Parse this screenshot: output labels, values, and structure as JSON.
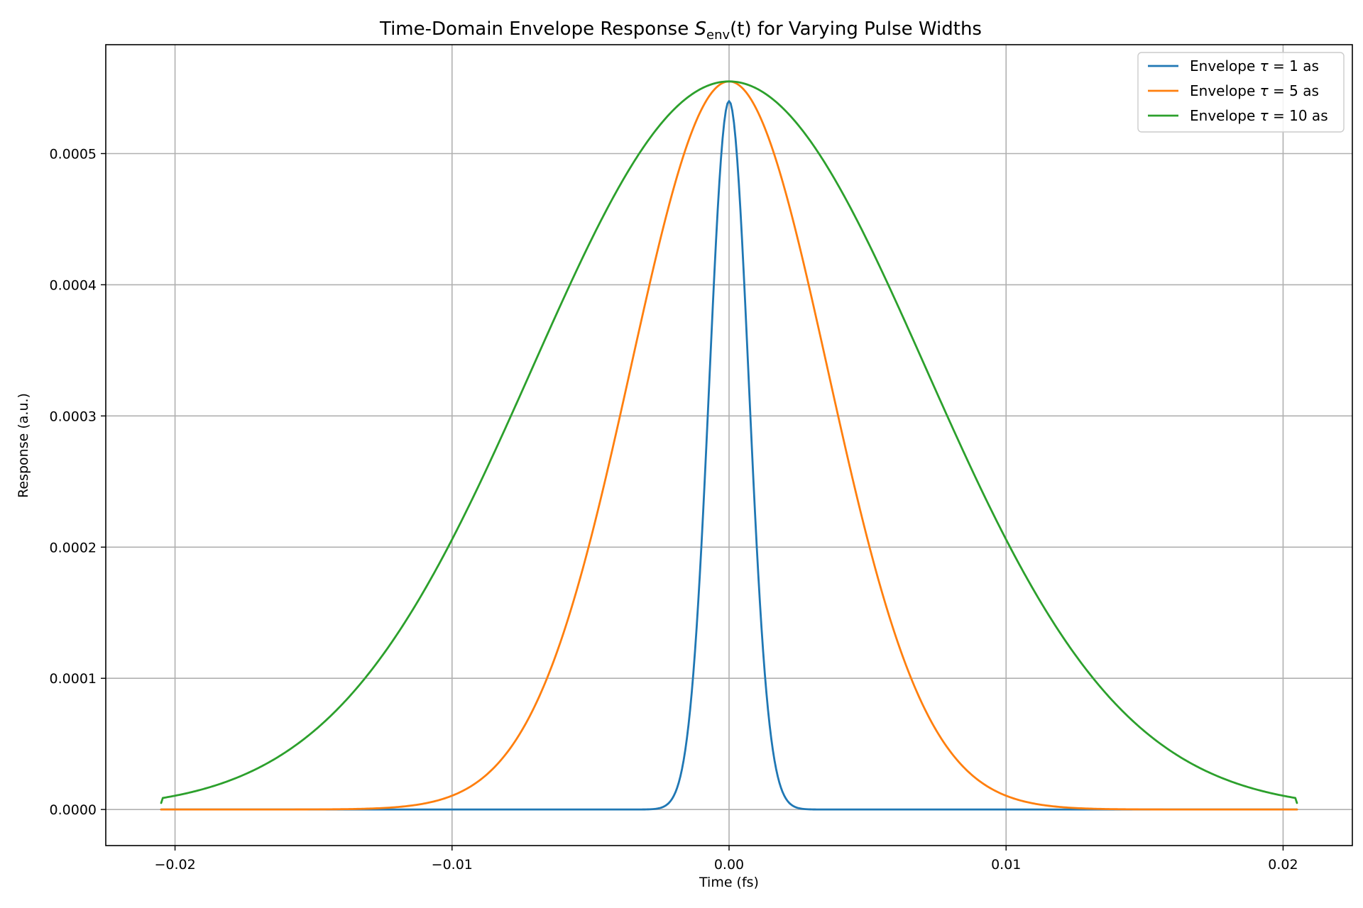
{
  "chart_data": {
    "type": "line",
    "title": {
      "prefix": "Time-Domain Envelope Response ",
      "symbol": "S",
      "subscript": "env",
      "suffix": "(t) for Varying Pulse Widths"
    },
    "xlabel": "Time (fs)",
    "ylabel": "Response (a.u.)",
    "xlim": [
      -0.0225,
      0.0225
    ],
    "ylim": [
      -2.75e-05,
      0.000583
    ],
    "xticks": [
      -0.02,
      -0.01,
      0.0,
      0.01,
      0.02
    ],
    "xtick_labels": [
      "−0.02",
      "−0.01",
      "0.00",
      "0.01",
      "0.02"
    ],
    "yticks": [
      0,
      0.0001,
      0.0002,
      0.0003,
      0.0004,
      0.0005
    ],
    "ytick_labels": [
      "0.0000",
      "0.0001",
      "0.0002",
      "0.0003",
      "0.0004",
      "0.0005"
    ],
    "grid": true,
    "legend_position": "top-right",
    "x_range": [
      -0.0205,
      0.0205
    ],
    "series": [
      {
        "label_prefix": "Envelope ",
        "label_tau": "τ",
        "label_eq": " = 1",
        "label_unit": " as",
        "color": "#1f77b4",
        "peak": 0.00054,
        "width": 0.00071,
        "edge_value": 0.0
      },
      {
        "label_prefix": "Envelope ",
        "label_tau": "τ",
        "label_eq": " = 5",
        "label_unit": " as",
        "color": "#ff7f0e",
        "peak": 0.000555,
        "width": 0.00355,
        "edge_value": 0.0
      },
      {
        "label_prefix": "Envelope ",
        "label_tau": "τ",
        "label_eq": " = 10",
        "label_unit": " as",
        "color": "#2ca02c",
        "peak": 0.000555,
        "width": 0.0071,
        "edge_value": 5e-06
      }
    ]
  }
}
